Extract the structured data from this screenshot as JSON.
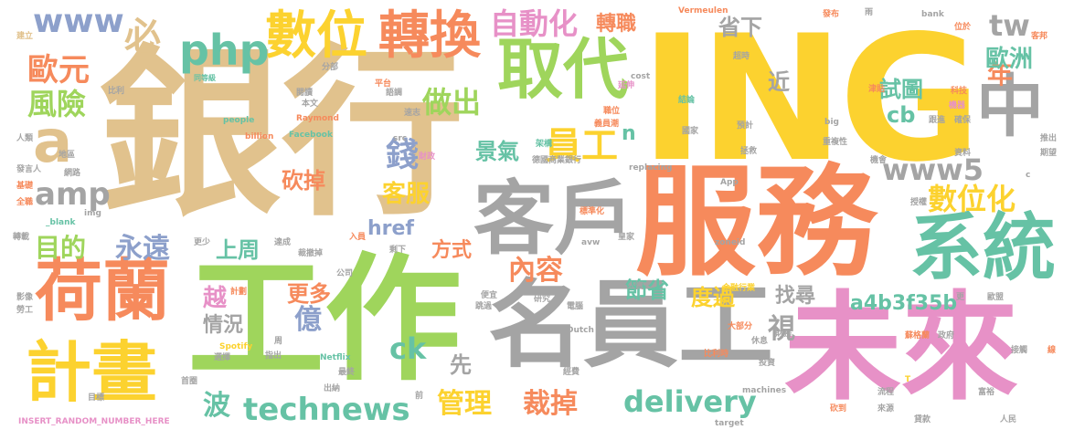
{
  "palette": {
    "tan": "#e1c28d",
    "lime": "#9fd55c",
    "yellow": "#fcd22f",
    "salmon": "#f68a5c",
    "gray": "#a4a4a4",
    "pink": "#e791c7",
    "teal": "#66c2a5",
    "blue": "#8da0cb"
  },
  "words": [
    "ING",
    "銀行",
    "服務",
    "工作",
    "未來",
    "名員工",
    "客戶",
    "荷蘭",
    "系統",
    "計畫",
    "取代",
    "中",
    "轉換",
    "數位",
    "a",
    "php",
    "自動化",
    "www",
    "必",
    "歐元",
    "風險",
    "amp",
    "目的",
    "永遠",
    "錢",
    "做出",
    "員工",
    "數位化",
    "www5",
    "tw",
    "年",
    "歐洲",
    "試圖",
    "cb",
    "近",
    "省下",
    "轉職",
    "景氣",
    "客服",
    "砍掉",
    "href",
    "上周",
    "內容",
    "方式",
    "越",
    "更多",
    "億",
    "情況",
    "ck",
    "technews",
    "波",
    "先",
    "管理",
    "裁掉",
    "delivery",
    "節省",
    "度過",
    "找尋",
    "a4b3f35b",
    "視",
    "n",
    "INSERT_RANDOM_NUMBER_HERE",
    "建立",
    "同等級",
    "閱讀",
    "Vermeulen",
    "發布",
    "雨",
    "bank",
    "位於",
    "客邦",
    "比利",
    "本文",
    "分部",
    "平台",
    "語調",
    "超時",
    "延伸",
    "cost",
    "結論",
    "科技",
    "津貼",
    "機器",
    "人類",
    "地區",
    "網路",
    "發言人",
    "Raymond",
    "people",
    "billion",
    "Facebook",
    "src",
    "速志",
    "義員潮",
    "職位",
    "big",
    "確保",
    "跟進",
    "預計",
    "國家",
    "AI",
    "推出",
    "資料",
    "重複性",
    "期望",
    "拯救",
    "財政",
    "機會",
    "基礎",
    "全職",
    "_blank",
    "img",
    "德國商業銀行",
    "replacing",
    "App",
    "授權",
    "標準化",
    "架構",
    "入員",
    "轉載",
    "更少",
    "達成",
    "裁撤掉",
    "剩下",
    "avw",
    "皇家",
    "zoneid",
    "公司",
    "計劃",
    "便宜",
    "研究",
    "人資",
    "金融行業",
    "更",
    "歐盟",
    "影像",
    "勞工",
    "跳過",
    "電腦",
    "之外",
    "選擇",
    "Spotify",
    "周",
    "指出",
    "Netflix",
    "Dutch",
    "大部分",
    "休息",
    "比利時",
    "財務",
    "蘇格蘭",
    "政府",
    "接觸",
    "線",
    "投資",
    "首圈",
    "最終",
    "經費",
    "目標",
    "出納",
    "前",
    "machines",
    "T",
    "target",
    "砍到",
    "來源",
    "貸款",
    "人民",
    "富裕",
    "流程",
    "c"
  ]
}
